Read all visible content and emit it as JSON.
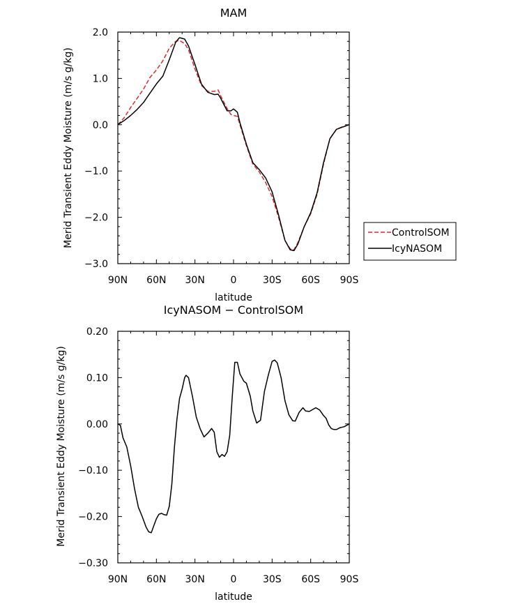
{
  "chart_data": [
    {
      "type": "line",
      "title": "MAM",
      "xlabel": "latitude",
      "ylabel": "Merid Transient Eddy Moisture (m/s g/kg)",
      "xlim": [
        90,
        -90
      ],
      "ylim": [
        -3.0,
        2.0
      ],
      "x_ticks": [
        {
          "value": 90,
          "label": "90N"
        },
        {
          "value": 60,
          "label": "60N"
        },
        {
          "value": 30,
          "label": "30N"
        },
        {
          "value": 0,
          "label": "0"
        },
        {
          "value": -30,
          "label": "30S"
        },
        {
          "value": -60,
          "label": "60S"
        },
        {
          "value": -90,
          "label": "90S"
        }
      ],
      "y_ticks": [
        {
          "value": 2.0,
          "label": "2.0"
        },
        {
          "value": 1.0,
          "label": "1.0"
        },
        {
          "value": 0.0,
          "label": "0.0"
        },
        {
          "value": -1.0,
          "label": "−1.0"
        },
        {
          "value": -2.0,
          "label": "−2.0"
        },
        {
          "value": -3.0,
          "label": "−3.0"
        }
      ],
      "legend": {
        "placement": "right"
      },
      "series": [
        {
          "name": "ControlSOM",
          "color": "#e0282c",
          "dash": true,
          "x": [
            90,
            85,
            80,
            75,
            70,
            65,
            60,
            55,
            50,
            45,
            42,
            38,
            35,
            30,
            25,
            20,
            15,
            12,
            10,
            5,
            2,
            0,
            -3,
            -5,
            -10,
            -15,
            -20,
            -25,
            -30,
            -35,
            -40,
            -44,
            -47,
            -50,
            -55,
            -60,
            -65,
            -70,
            -75,
            -80,
            -85,
            -90
          ],
          "y": [
            0.0,
            0.15,
            0.37,
            0.57,
            0.77,
            1.02,
            1.18,
            1.38,
            1.65,
            1.8,
            1.82,
            1.75,
            1.62,
            1.2,
            0.85,
            0.72,
            0.72,
            0.75,
            0.62,
            0.35,
            0.22,
            0.2,
            0.18,
            0.0,
            -0.45,
            -0.85,
            -1.02,
            -1.25,
            -1.55,
            -2.0,
            -2.5,
            -2.68,
            -2.7,
            -2.55,
            -2.2,
            -1.92,
            -1.5,
            -0.85,
            -0.3,
            -0.1,
            -0.04,
            0.0
          ]
        },
        {
          "name": "IcyNASOM",
          "color": "#000000",
          "dash": false,
          "x": [
            90,
            85,
            80,
            75,
            70,
            65,
            60,
            55,
            50,
            45,
            42,
            38,
            35,
            30,
            25,
            20,
            15,
            12,
            10,
            5,
            2,
            0,
            -3,
            -5,
            -10,
            -15,
            -20,
            -25,
            -30,
            -35,
            -40,
            -44,
            -47,
            -50,
            -55,
            -60,
            -65,
            -70,
            -75,
            -80,
            -85,
            -90
          ],
          "y": [
            0.0,
            0.09,
            0.2,
            0.33,
            0.48,
            0.68,
            0.88,
            1.05,
            1.4,
            1.78,
            1.88,
            1.85,
            1.7,
            1.3,
            0.88,
            0.7,
            0.65,
            0.66,
            0.57,
            0.3,
            0.3,
            0.34,
            0.27,
            0.04,
            -0.42,
            -0.82,
            -0.97,
            -1.15,
            -1.45,
            -1.95,
            -2.5,
            -2.7,
            -2.72,
            -2.58,
            -2.2,
            -1.9,
            -1.47,
            -0.82,
            -0.3,
            -0.1,
            -0.05,
            0.0
          ]
        }
      ]
    },
    {
      "type": "line",
      "title": "IcyNASOM − ControlSOM",
      "xlabel": "latitude",
      "ylabel": "Merid Transient Eddy Moisture (m/s g/kg)",
      "xlim": [
        90,
        -90
      ],
      "ylim": [
        -0.3,
        0.2
      ],
      "x_ticks": [
        {
          "value": 90,
          "label": "90N"
        },
        {
          "value": 60,
          "label": "60N"
        },
        {
          "value": 30,
          "label": "30N"
        },
        {
          "value": 0,
          "label": "0"
        },
        {
          "value": -30,
          "label": "30S"
        },
        {
          "value": -60,
          "label": "60S"
        },
        {
          "value": -90,
          "label": "90S"
        }
      ],
      "y_ticks": [
        {
          "value": 0.2,
          "label": "0.20"
        },
        {
          "value": 0.1,
          "label": "0.10"
        },
        {
          "value": 0.0,
          "label": "0.00"
        },
        {
          "value": -0.1,
          "label": "−0.10"
        },
        {
          "value": -0.2,
          "label": "−0.20"
        },
        {
          "value": -0.3,
          "label": "−0.30"
        }
      ],
      "series": [
        {
          "color": "#000000",
          "dash": false,
          "x": [
            90,
            88,
            86,
            83,
            80,
            77,
            74,
            71,
            68,
            66,
            64,
            62,
            60,
            58,
            56,
            54,
            52,
            50,
            48,
            46,
            44,
            42,
            40,
            38,
            37,
            35,
            32,
            29,
            26,
            23,
            20,
            17,
            15,
            13,
            11,
            9,
            7,
            5,
            3,
            1,
            -1,
            -3,
            -5,
            -8,
            -10,
            -13,
            -15,
            -18,
            -21,
            -24,
            -27,
            -30,
            -32,
            -34,
            -37,
            -40,
            -43,
            -46,
            -48,
            -51,
            -54,
            -56,
            -59,
            -62,
            -64,
            -67,
            -70,
            -72,
            -74,
            -76,
            -78,
            -80,
            -83,
            -86,
            -88,
            -90
          ],
          "y": [
            0.0,
            -0.003,
            -0.03,
            -0.05,
            -0.09,
            -0.14,
            -0.18,
            -0.2,
            -0.223,
            -0.233,
            -0.235,
            -0.22,
            -0.205,
            -0.195,
            -0.193,
            -0.196,
            -0.197,
            -0.178,
            -0.13,
            -0.05,
            0.01,
            0.055,
            0.075,
            0.1,
            0.105,
            0.1,
            0.06,
            0.015,
            -0.01,
            -0.028,
            -0.02,
            -0.01,
            -0.018,
            -0.06,
            -0.072,
            -0.066,
            -0.07,
            -0.06,
            -0.025,
            0.06,
            0.133,
            0.133,
            0.108,
            0.092,
            0.088,
            0.06,
            0.028,
            0.002,
            0.008,
            0.07,
            0.105,
            0.135,
            0.138,
            0.132,
            0.1,
            0.05,
            0.02,
            0.007,
            0.006,
            0.025,
            0.035,
            0.028,
            0.027,
            0.032,
            0.035,
            0.03,
            0.018,
            0.012,
            -0.002,
            -0.01,
            -0.012,
            -0.012,
            -0.008,
            -0.006,
            -0.003,
            0.0
          ]
        }
      ]
    }
  ]
}
